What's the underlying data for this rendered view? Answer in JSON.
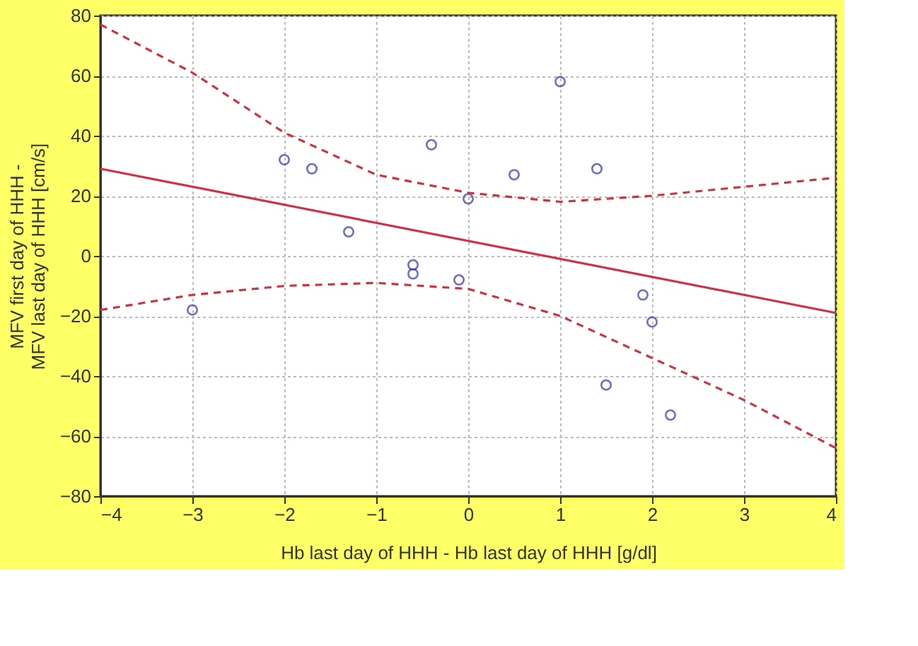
{
  "chart_data": {
    "type": "scatter",
    "xlabel": "Hb last day of HHH -  Hb last day of HHH [g/dl]",
    "ylabel": "MFV first day of HHH -\nMFV last day of HHH [cm/s]",
    "xlim": [
      -4,
      4
    ],
    "xticks": [
      -4,
      -3,
      -2,
      -1,
      0,
      1,
      2,
      3,
      4
    ],
    "ylim": [
      -80,
      80
    ],
    "yticks": [
      -80,
      -60,
      -40,
      -20,
      0,
      20,
      40,
      60,
      80
    ],
    "grid": true,
    "series": [
      {
        "color": "#3333aa",
        "marker": "circle",
        "x": [
          -3,
          -2,
          -1.7,
          -1.3,
          -0.6,
          -0.6,
          -0.4,
          -0.1,
          0,
          0.5,
          1,
          1.4,
          1.9,
          2,
          1.5,
          2.2
        ],
        "values": [
          -18,
          32,
          29,
          8,
          -3,
          -6,
          37,
          -8,
          19,
          27,
          58,
          29,
          -13,
          -22,
          -43,
          -53
        ]
      },
      {
        "type": "line",
        "color": "#cc3344",
        "line_style": "solid",
        "x": [
          -4,
          4
        ],
        "values": [
          29,
          -19
        ]
      },
      {
        "type": "line",
        "color": "#cc3344",
        "line_style": "dashed",
        "x": [
          -4,
          -3,
          -2,
          -1,
          0,
          1,
          2,
          3,
          4
        ],
        "values": [
          77,
          61,
          41,
          27,
          21,
          18,
          20,
          23,
          26
        ]
      },
      {
        "type": "line",
        "color": "#cc3344",
        "line_style": "dashed",
        "x": [
          -4,
          -3,
          -2,
          -1,
          0,
          1,
          2,
          3,
          4
        ],
        "values": [
          -18,
          -13,
          -10,
          -9,
          -11,
          -20,
          -34,
          -48,
          -64
        ]
      }
    ]
  }
}
